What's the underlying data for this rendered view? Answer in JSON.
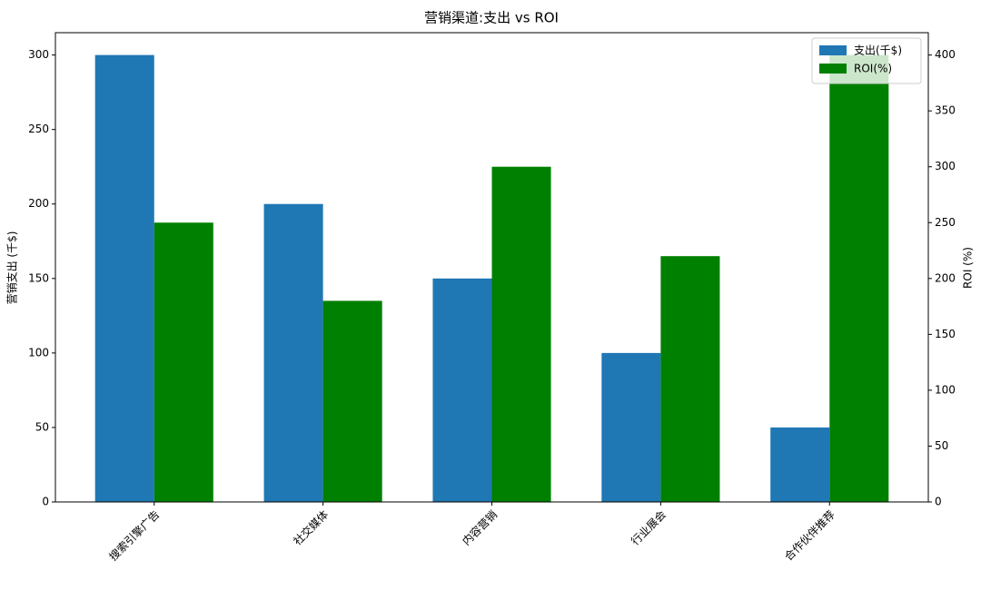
{
  "chart_data": {
    "type": "bar",
    "title": "营销渠道:支出 vs ROI",
    "categories": [
      "搜索引擎广告",
      "社交媒体",
      "内容营销",
      "行业展会",
      "合作伙伴推荐"
    ],
    "series": [
      {
        "name": "支出(千$)",
        "color": "#1f77b4",
        "values": [
          300,
          200,
          150,
          100,
          50
        ]
      },
      {
        "name": "ROI(%)",
        "color": "#008000",
        "values": [
          250,
          180,
          300,
          220,
          400
        ],
        "axis": "y2"
      }
    ],
    "ylabel": "营销支出 (千$)",
    "y2label": "ROI (%)",
    "ylim": [
      0,
      315
    ],
    "yticks": [
      0,
      50,
      100,
      150,
      200,
      250,
      300
    ],
    "y2lim": [
      0,
      420
    ],
    "y2ticks": [
      0,
      50,
      100,
      150,
      200,
      250,
      300,
      350,
      400
    ],
    "legend": "upper right"
  }
}
